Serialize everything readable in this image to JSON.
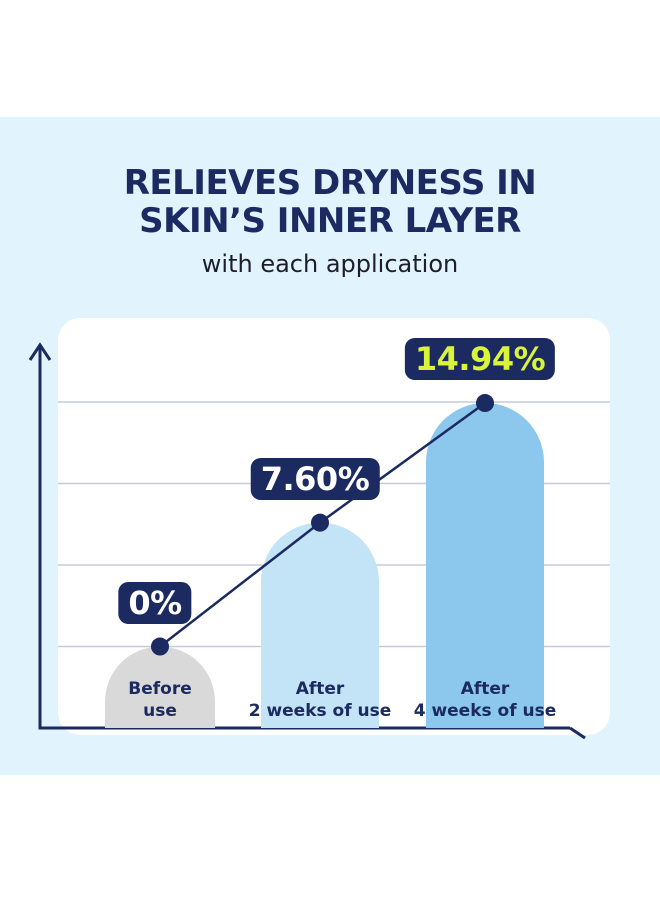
{
  "chart_data": {
    "type": "bar",
    "title": [
      "RELIEVES DRYNESS IN",
      "SKIN’S INNER LAYER"
    ],
    "subtitle": "with each application",
    "categories": [
      "Before\nuse",
      "After\n2 weeks of use",
      "After\n4 weeks of use"
    ],
    "values": [
      0,
      7.6,
      14.94
    ],
    "value_labels": [
      "0%",
      "7.60%",
      "14.94%"
    ],
    "colors": [
      "#d9d9d9",
      "#c3e3f6",
      "#8cc7ee"
    ],
    "line_color": "#1b2a60",
    "ylim": [
      -5,
      18.5
    ],
    "yticks": [
      0,
      5,
      10,
      15
    ],
    "grid": true
  }
}
